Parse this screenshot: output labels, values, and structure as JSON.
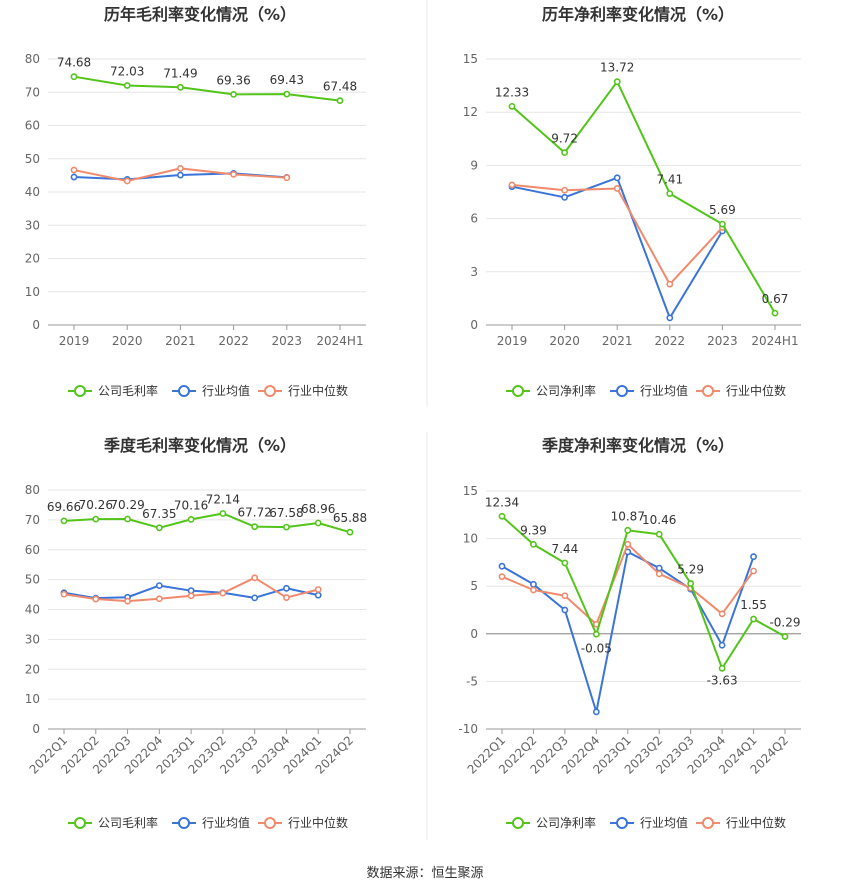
{
  "colors": {
    "company": "#52c41a",
    "industry_avg": "#3b74d9",
    "industry_median": "#f08a6c",
    "grid": "#e6e6e6",
    "axis_text": "#666666",
    "title_text": "#333333",
    "divider": "#e8e8e8"
  },
  "footer": {
    "source": "数据来源：恒生聚源"
  },
  "chart_data": [
    {
      "type": "line",
      "title": "历年毛利率变化情况（%）",
      "categories": [
        "2019",
        "2020",
        "2021",
        "2022",
        "2023",
        "2024H1"
      ],
      "ylim": [
        0,
        80
      ],
      "yticks": [
        0,
        10,
        20,
        30,
        40,
        50,
        60,
        70,
        80
      ],
      "rotate_x": false,
      "legend": [
        "公司毛利率",
        "行业均值",
        "行业中位数"
      ],
      "series": [
        {
          "name": "公司毛利率",
          "color_key": "company",
          "labels": true,
          "values": [
            74.68,
            72.03,
            71.49,
            69.36,
            69.43,
            67.48
          ],
          "value_labels": [
            "74.68",
            "72.03",
            "71.49",
            "69.36",
            "69.43",
            "67.48"
          ]
        },
        {
          "name": "行业均值",
          "color_key": "industry_avg",
          "labels": false,
          "values": [
            44.5,
            43.8,
            45.1,
            45.6,
            44.4,
            null
          ]
        },
        {
          "name": "行业中位数",
          "color_key": "industry_median",
          "labels": false,
          "values": [
            46.6,
            43.3,
            47.1,
            45.3,
            44.3,
            null
          ]
        }
      ]
    },
    {
      "type": "line",
      "title": "历年净利率变化情况（%）",
      "categories": [
        "2019",
        "2020",
        "2021",
        "2022",
        "2023",
        "2024H1"
      ],
      "ylim": [
        0,
        15
      ],
      "yticks": [
        0,
        3,
        6,
        9,
        12,
        15
      ],
      "rotate_x": false,
      "legend": [
        "公司净利率",
        "行业均值",
        "行业中位数"
      ],
      "series": [
        {
          "name": "公司净利率",
          "color_key": "company",
          "labels": true,
          "values": [
            12.33,
            9.72,
            13.72,
            7.41,
            5.69,
            0.67
          ],
          "value_labels": [
            "12.33",
            "9.72",
            "13.72",
            "7.41",
            "5.69",
            "0.67"
          ]
        },
        {
          "name": "行业均值",
          "color_key": "industry_avg",
          "labels": false,
          "values": [
            7.8,
            7.2,
            8.3,
            0.4,
            5.3,
            null
          ]
        },
        {
          "name": "行业中位数",
          "color_key": "industry_median",
          "labels": false,
          "values": [
            7.9,
            7.6,
            7.7,
            2.3,
            5.5,
            null
          ]
        }
      ]
    },
    {
      "type": "line",
      "title": "季度毛利率变化情况（%）",
      "categories": [
        "2022Q1",
        "2022Q2",
        "2022Q3",
        "2022Q4",
        "2023Q1",
        "2023Q2",
        "2023Q3",
        "2023Q4",
        "2024Q1",
        "2024Q2"
      ],
      "ylim": [
        0,
        80
      ],
      "yticks": [
        0,
        10,
        20,
        30,
        40,
        50,
        60,
        70,
        80
      ],
      "rotate_x": true,
      "legend": [
        "公司毛利率",
        "行业均值",
        "行业中位数"
      ],
      "series": [
        {
          "name": "公司毛利率",
          "color_key": "company",
          "labels": true,
          "values": [
            69.66,
            70.26,
            70.29,
            67.35,
            70.16,
            72.14,
            67.72,
            67.58,
            68.96,
            65.88
          ],
          "value_labels": [
            "69.66",
            "70.26",
            "70.29",
            "67.35",
            "70.16",
            "72.14",
            "67.72",
            "67.58",
            "68.96",
            "65.88"
          ]
        },
        {
          "name": "行业均值",
          "color_key": "industry_avg",
          "labels": false,
          "values": [
            45.6,
            43.8,
            44.1,
            48.0,
            46.3,
            45.6,
            43.9,
            47.1,
            44.8,
            null
          ]
        },
        {
          "name": "行业中位数",
          "color_key": "industry_median",
          "labels": false,
          "values": [
            45.1,
            43.5,
            42.8,
            43.6,
            44.6,
            45.5,
            50.6,
            44.0,
            46.7,
            null
          ]
        }
      ]
    },
    {
      "type": "line",
      "title": "季度净利率变化情况（%）",
      "categories": [
        "2022Q1",
        "2022Q2",
        "2022Q3",
        "2022Q4",
        "2023Q1",
        "2023Q2",
        "2023Q3",
        "2023Q4",
        "2024Q1",
        "2024Q2"
      ],
      "ylim": [
        -10,
        15
      ],
      "yticks": [
        -10,
        -5,
        0,
        5,
        10,
        15
      ],
      "rotate_x": true,
      "legend": [
        "公司净利率",
        "行业均值",
        "行业中位数"
      ],
      "series": [
        {
          "name": "公司净利率",
          "color_key": "company",
          "labels": true,
          "values": [
            12.34,
            9.39,
            7.44,
            -0.05,
            10.87,
            10.46,
            5.29,
            -3.63,
            1.55,
            -0.29
          ],
          "value_labels": [
            "12.34",
            "9.39",
            "7.44",
            "-0.05",
            "10.87",
            "10.46",
            "5.29",
            "-3.63",
            "1.55",
            "-0.29"
          ]
        },
        {
          "name": "行业均值",
          "color_key": "industry_avg",
          "labels": false,
          "values": [
            7.1,
            5.2,
            2.5,
            -8.2,
            8.6,
            6.9,
            4.7,
            -1.2,
            8.1,
            null
          ]
        },
        {
          "name": "行业中位数",
          "color_key": "industry_median",
          "labels": false,
          "values": [
            6.0,
            4.6,
            4.0,
            1.0,
            9.4,
            6.3,
            4.8,
            2.1,
            6.6,
            null
          ]
        }
      ]
    }
  ]
}
